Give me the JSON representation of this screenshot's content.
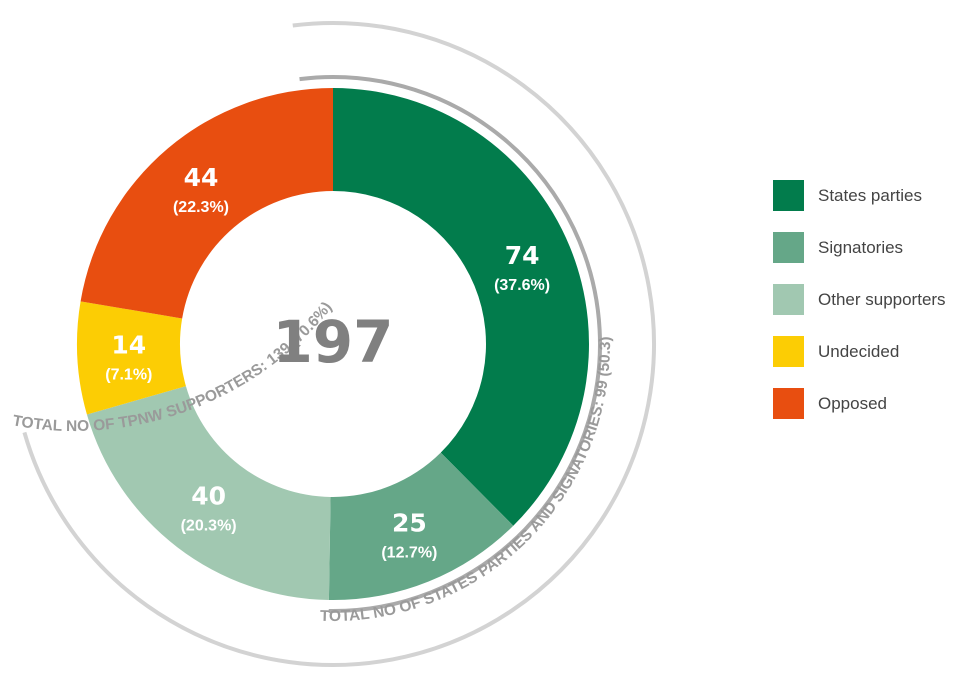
{
  "chart_data": {
    "type": "pie",
    "total": 197,
    "series": [
      {
        "name": "States parties",
        "value": 74,
        "percent": "(37.6%)",
        "color": "#027c4c"
      },
      {
        "name": "Signatories",
        "value": 25,
        "percent": "(12.7%)",
        "color": "#65a788"
      },
      {
        "name": "Other supporters",
        "value": 40,
        "percent": "(20.3%)",
        "color": "#a1c8b1"
      },
      {
        "name": "Undecided",
        "value": 14,
        "percent": "(7.1%)",
        "color": "#fccd04"
      },
      {
        "name": "Opposed",
        "value": 44,
        "percent": "(22.3%)",
        "color": "#e84e10"
      }
    ],
    "annotations": [
      {
        "text": "TOTAL NO OF STATES PARTIES AND SIGNATORIES: 99 (50.3)",
        "value": 99,
        "color": "#aaaaaa"
      },
      {
        "text": "TOTAL NO OF TPNW SUPPORTERS: 139 (70.6%)",
        "value": 139,
        "color": "#d3d3d3"
      }
    ],
    "legend_position": "right"
  }
}
